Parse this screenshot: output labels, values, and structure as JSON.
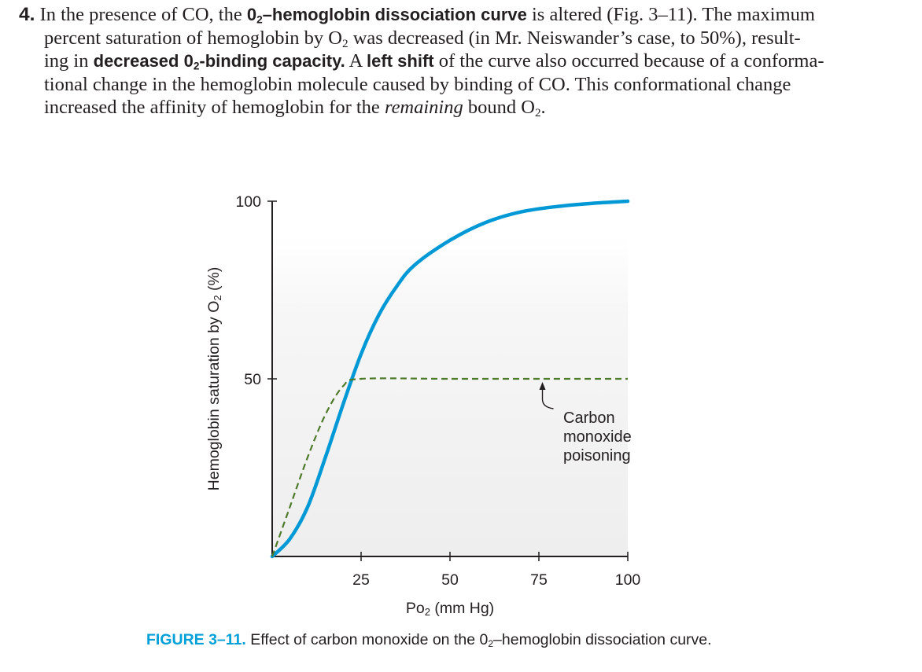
{
  "paragraph": {
    "number": "4.",
    "l1_a": "In the presence of CO, the ",
    "l1_b": "0",
    "l1_b_sub": "2",
    "l1_c": "–hemoglobin dissociation curve",
    "l1_d": " is altered (Fig. 3–11). The maximum",
    "l2_a": "percent saturation of hemoglobin by O",
    "l2_sub": "2",
    "l2_b": " was decreased (in Mr. Neiswander’s case, to 50%), result-",
    "l3_a": "ing in ",
    "l3_b": "decreased 0",
    "l3_b_sub": "2",
    "l3_c": "-binding capacity.",
    "l3_d": " A ",
    "l3_e": "left shift",
    "l3_f": " of the curve also occurred because of a conforma-",
    "l4": "tional change in the hemoglobin molecule caused by binding of CO. This conformational change",
    "l5_a": "increased the affinity of hemoglobin for the ",
    "l5_b": "remaining",
    "l5_c": " bound O",
    "l5_sub": "2",
    "l5_d": "."
  },
  "chart_data": {
    "type": "line",
    "xlabel": "Po2 (mm Hg)",
    "xlabel_main": "Po",
    "xlabel_sub": "2",
    "xlabel_rest": " (mm Hg)",
    "ylabel": "Hemoglobin saturation by O2 (%)",
    "ylabel_main": "Hemoglobin saturation by O",
    "ylabel_sub": "2",
    "ylabel_rest": " (%)",
    "xlim": [
      0,
      100
    ],
    "ylim": [
      0,
      100
    ],
    "x_ticks": [
      25,
      50,
      75,
      100
    ],
    "x_tick_labels": [
      "25",
      "50",
      "75",
      "100"
    ],
    "y_ticks": [
      50,
      100
    ],
    "y_tick_labels": [
      "50",
      "100"
    ],
    "series": [
      {
        "style": "solid",
        "color": "#0099d6",
        "x": [
          0,
          5,
          10,
          15,
          20,
          25,
          30,
          35,
          40,
          50,
          60,
          70,
          80,
          90,
          100
        ],
        "y": [
          0,
          5,
          14,
          28,
          43,
          57,
          68,
          76,
          82,
          89,
          94,
          97,
          98.5,
          99.4,
          100
        ]
      },
      {
        "style": "dashed",
        "color": "#4d7a2a",
        "x": [
          0,
          5,
          10,
          15,
          20,
          25,
          50,
          75,
          100
        ],
        "y": [
          0,
          14,
          28,
          40,
          48,
          50,
          50,
          50,
          50
        ]
      }
    ],
    "annotation": {
      "lines": [
        "Carbon",
        "monoxide",
        "poisoning"
      ],
      "arrow_to": [
        76,
        50
      ]
    }
  },
  "caption": {
    "label": "FIGURE 3–11.",
    "text_a": " Effect of carbon monoxide on the 0",
    "text_sub": "2",
    "text_b": "–hemoglobin dissociation curve."
  }
}
